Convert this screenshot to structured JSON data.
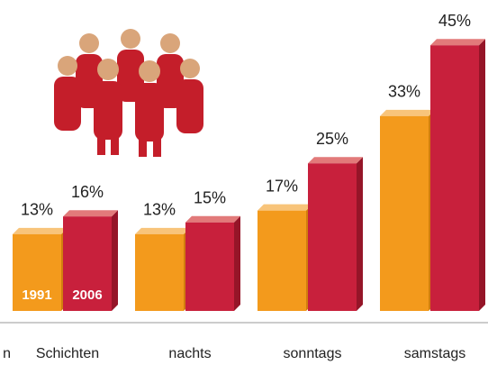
{
  "chart_data": {
    "type": "bar",
    "categories": [
      "n",
      "Schichten",
      "nachts",
      "sonntags",
      "samstags"
    ],
    "series": [
      {
        "name": "1991",
        "color": "#f39a1c",
        "values": [
          null,
          13,
          13,
          17,
          33
        ],
        "value_labels": [
          null,
          "13%",
          "13%",
          "17%",
          "33%"
        ]
      },
      {
        "name": "2006",
        "color": "#c8203c",
        "values": [
          null,
          16,
          15,
          25,
          45
        ],
        "value_labels": [
          null,
          "16%",
          "15%",
          "25%",
          "45%"
        ]
      }
    ]
  }
}
